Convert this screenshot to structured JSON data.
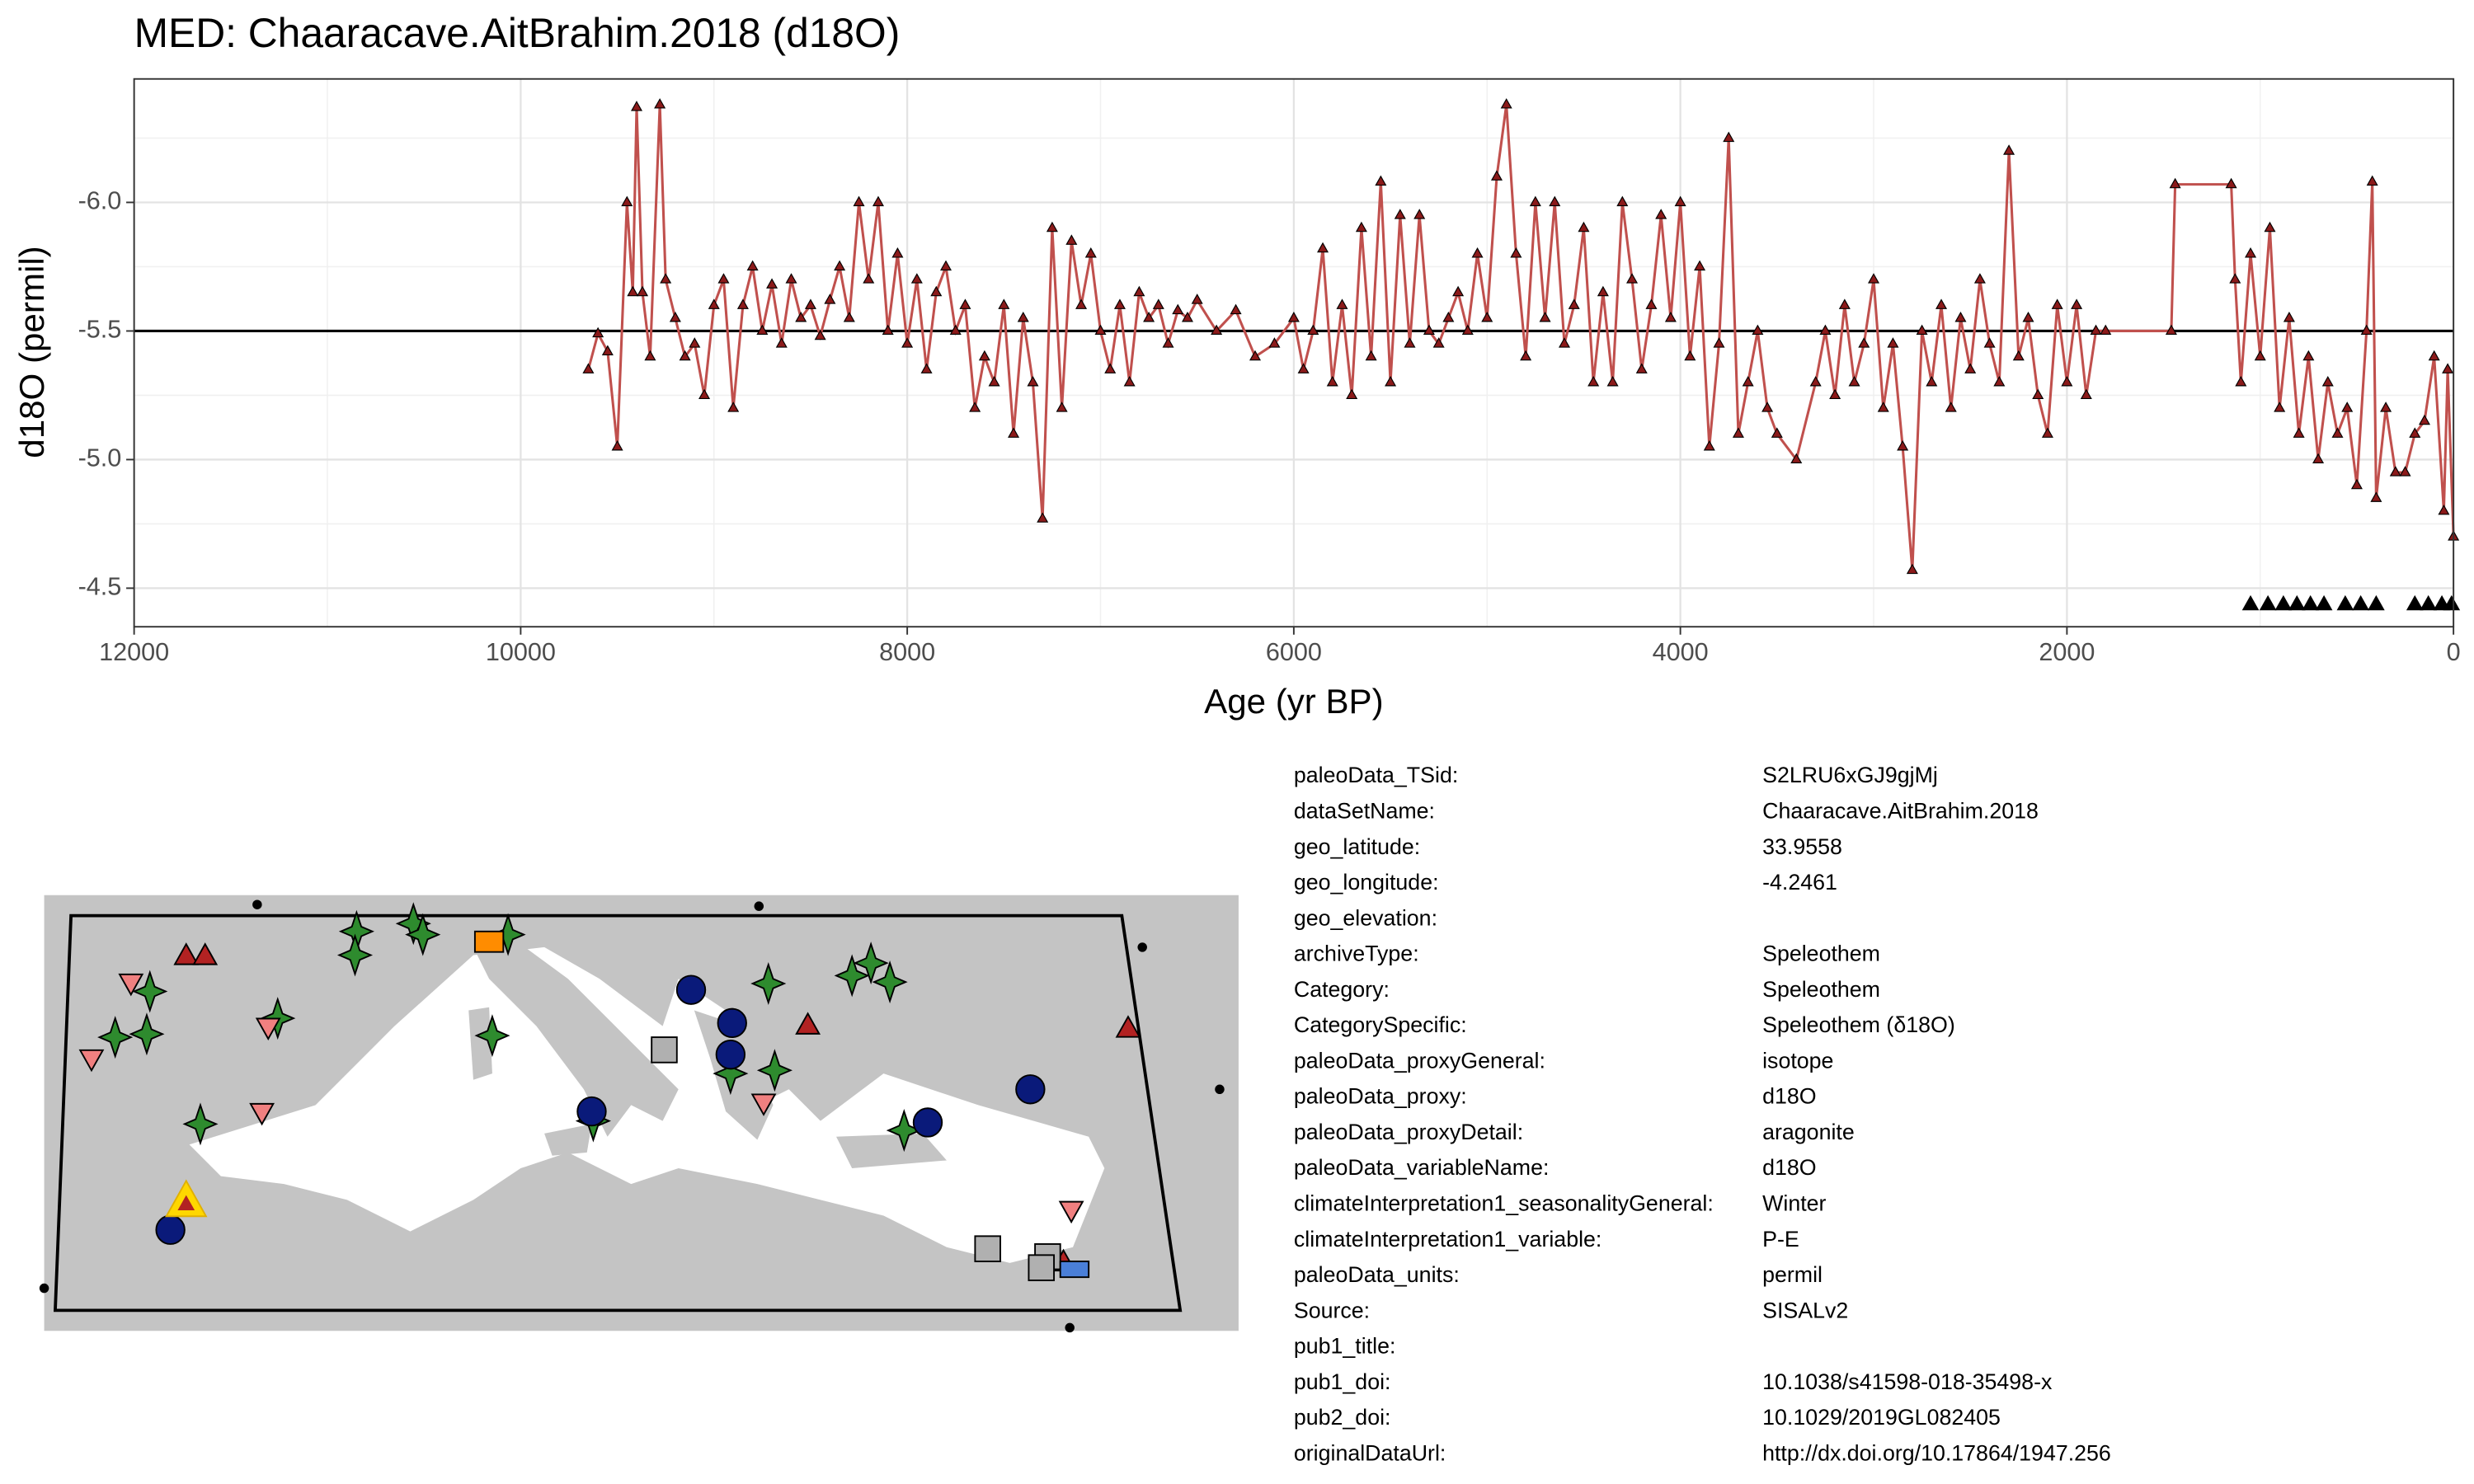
{
  "chart_data": {
    "type": "line",
    "title": "MED: Chaaracave.AitBrahim.2018 (d18O)",
    "xlabel": "Age (yr BP)",
    "ylabel": "d18O (permil)",
    "x": [
      9650,
      9600,
      9550,
      9500,
      9450,
      9420,
      9400,
      9370,
      9330,
      9280,
      9250,
      9200,
      9150,
      9100,
      9050,
      9000,
      8950,
      8900,
      8850,
      8800,
      8750,
      8700,
      8650,
      8600,
      8550,
      8500,
      8450,
      8400,
      8350,
      8300,
      8250,
      8200,
      8150,
      8100,
      8050,
      8000,
      7950,
      7900,
      7850,
      7800,
      7750,
      7700,
      7650,
      7600,
      7550,
      7500,
      7450,
      7400,
      7350,
      7300,
      7250,
      7200,
      7150,
      7100,
      7050,
      7000,
      6950,
      6900,
      6850,
      6800,
      6750,
      6700,
      6650,
      6600,
      6550,
      6500,
      6400,
      6300,
      6200,
      6100,
      6000,
      5950,
      5900,
      5850,
      5800,
      5750,
      5700,
      5650,
      5600,
      5550,
      5500,
      5450,
      5400,
      5350,
      5300,
      5250,
      5200,
      5150,
      5100,
      5050,
      5000,
      4950,
      4900,
      4850,
      4800,
      4750,
      4700,
      4650,
      4600,
      4550,
      4500,
      4450,
      4400,
      4350,
      4300,
      4250,
      4200,
      4150,
      4100,
      4050,
      4000,
      3950,
      3900,
      3850,
      3800,
      3750,
      3700,
      3650,
      3600,
      3550,
      3500,
      3400,
      3300,
      3250,
      3200,
      3150,
      3100,
      3050,
      3000,
      2950,
      2900,
      2850,
      2800,
      2750,
      2700,
      2650,
      2600,
      2550,
      2500,
      2450,
      2400,
      2350,
      2300,
      2250,
      2200,
      2150,
      2100,
      2050,
      2000,
      1950,
      1900,
      1850,
      1800,
      1460,
      1440,
      1150,
      1130,
      1100,
      1050,
      1000,
      950,
      900,
      850,
      800,
      750,
      700,
      650,
      600,
      550,
      500,
      450,
      420,
      400,
      350,
      300,
      250,
      200,
      150,
      100,
      50,
      30,
      0
    ],
    "values": [
      -5.35,
      -5.49,
      -5.42,
      -5.05,
      -6.0,
      -5.65,
      -6.37,
      -5.65,
      -5.4,
      -6.38,
      -5.7,
      -5.55,
      -5.4,
      -5.45,
      -5.25,
      -5.6,
      -5.7,
      -5.2,
      -5.6,
      -5.75,
      -5.5,
      -5.68,
      -5.45,
      -5.7,
      -5.55,
      -5.6,
      -5.48,
      -5.62,
      -5.75,
      -5.55,
      -6.0,
      -5.7,
      -6.0,
      -5.5,
      -5.8,
      -5.45,
      -5.7,
      -5.35,
      -5.65,
      -5.75,
      -5.5,
      -5.6,
      -5.2,
      -5.4,
      -5.3,
      -5.6,
      -5.1,
      -5.55,
      -5.3,
      -4.77,
      -5.9,
      -5.2,
      -5.85,
      -5.6,
      -5.8,
      -5.5,
      -5.35,
      -5.6,
      -5.3,
      -5.65,
      -5.55,
      -5.6,
      -5.45,
      -5.58,
      -5.55,
      -5.62,
      -5.5,
      -5.58,
      -5.4,
      -5.45,
      -5.55,
      -5.35,
      -5.5,
      -5.82,
      -5.3,
      -5.6,
      -5.25,
      -5.9,
      -5.4,
      -6.08,
      -5.3,
      -5.95,
      -5.45,
      -5.95,
      -5.5,
      -5.45,
      -5.55,
      -5.65,
      -5.5,
      -5.8,
      -5.55,
      -6.1,
      -6.38,
      -5.8,
      -5.4,
      -6.0,
      -5.55,
      -6.0,
      -5.45,
      -5.6,
      -5.9,
      -5.3,
      -5.65,
      -5.3,
      -6.0,
      -5.7,
      -5.35,
      -5.6,
      -5.95,
      -5.55,
      -6.0,
      -5.4,
      -5.75,
      -5.05,
      -5.45,
      -6.25,
      -5.1,
      -5.3,
      -5.5,
      -5.2,
      -5.1,
      -5.0,
      -5.3,
      -5.5,
      -5.25,
      -5.6,
      -5.3,
      -5.45,
      -5.7,
      -5.2,
      -5.45,
      -5.05,
      -4.57,
      -5.5,
      -5.3,
      -5.6,
      -5.2,
      -5.55,
      -5.35,
      -5.7,
      -5.45,
      -5.3,
      -6.2,
      -5.4,
      -5.55,
      -5.25,
      -5.1,
      -5.6,
      -5.3,
      -5.6,
      -5.25,
      -5.5,
      -5.5,
      -5.5,
      -6.07,
      -6.07,
      -5.7,
      -5.3,
      -5.8,
      -5.4,
      -5.9,
      -5.2,
      -5.55,
      -5.1,
      -5.4,
      -5.0,
      -5.3,
      -5.1,
      -5.2,
      -4.9,
      -5.5,
      -6.08,
      -4.85,
      -5.2,
      -4.95,
      -4.95,
      -5.1,
      -5.15,
      -5.4,
      -4.8,
      -5.35,
      -4.7
    ],
    "color": "#c0504d",
    "marker_color": "#8b1a1a",
    "xlim": [
      12000,
      0
    ],
    "ylim": [
      -4.35,
      -6.48
    ],
    "xticks": [
      12000,
      10000,
      8000,
      6000,
      4000,
      2000,
      0
    ],
    "yticks": [
      {
        "value": -6,
        "label": "-6.0"
      },
      -5.5,
      {
        "value": -5,
        "label": "-5.0"
      },
      -4.5
    ],
    "x_minor_ticks": [
      11000,
      9000,
      7000,
      5000,
      3000,
      1000
    ],
    "y_minor_ticks": [
      -6.25,
      -5.75,
      -5.25,
      -4.75
    ],
    "hline": -5.5,
    "grid": true,
    "bottom_markers": [
      1050,
      960,
      880,
      810,
      740,
      670,
      560,
      480,
      400,
      200,
      130,
      60,
      10
    ]
  },
  "metadata": {
    "rows": [
      {
        "key": "paleoData_TSid:",
        "value": "S2LRU6xGJ9gjMj"
      },
      {
        "key": "dataSetName:",
        "value": "Chaaracave.AitBrahim.2018"
      },
      {
        "key": "geo_latitude:",
        "value": "33.9558"
      },
      {
        "key": "geo_longitude:",
        "value": "-4.2461"
      },
      {
        "key": "geo_elevation:"
      },
      {
        "key": "archiveType:",
        "value": "Speleothem"
      },
      {
        "key": "Category:",
        "value": "Speleothem"
      },
      {
        "key": "CategorySpecific:",
        "value": "Speleothem (δ18O)"
      },
      {
        "key": "paleoData_proxyGeneral:",
        "value": "isotope"
      },
      {
        "key": "paleoData_proxy:",
        "value": "d18O"
      },
      {
        "key": "paleoData_proxyDetail:",
        "value": "aragonite"
      },
      {
        "key": "paleoData_variableName:",
        "value": "d18O"
      },
      {
        "key": "climateInterpretation1_seasonalityGeneral:",
        "value": "Winter"
      },
      {
        "key": "climateInterpretation1_variable:",
        "value": "P-E"
      },
      {
        "key": "paleoData_units:",
        "value": "permil"
      },
      {
        "key": "Source:",
        "value": "SISALv2"
      },
      {
        "key": "pub1_title:"
      },
      {
        "key": "pub1_doi:",
        "value": "10.1038/s41598-018-35498-x"
      },
      {
        "key": "pub2_doi:",
        "value": "10.1029/2019GL082405"
      },
      {
        "key": "originalDataUrl:",
        "value": "http://dx.doi.org/10.17864/1947.256"
      }
    ]
  }
}
